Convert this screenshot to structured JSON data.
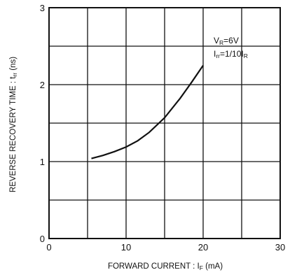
{
  "chart_data": {
    "type": "line",
    "xlabel": "FORWARD CURRENT : I",
    "xlabel_sub": "F",
    "xlabel_unit": " (mA)",
    "ylabel": "REVERSE RECOVERY TIME : t",
    "ylabel_sub": "rr",
    "ylabel_unit": " (ns)",
    "xlim": [
      0,
      30
    ],
    "ylim": [
      0,
      3
    ],
    "x_ticks": [
      "0",
      "10",
      "20",
      "30"
    ],
    "y_ticks": [
      "0",
      "1",
      "2",
      "3"
    ],
    "grid": true,
    "series": [
      {
        "x": [
          5.5,
          7,
          8.5,
          10,
          11.5,
          13,
          15,
          17,
          18.5,
          20
        ],
        "y": [
          1.04,
          1.08,
          1.13,
          1.19,
          1.27,
          1.38,
          1.57,
          1.82,
          2.03,
          2.25
        ]
      }
    ],
    "annotations": [
      {
        "main": "V",
        "sub": "R",
        "rest": "=6V"
      },
      {
        "main": "I",
        "sub": "rr",
        "rest": "=1/10I",
        "sub2": "R"
      }
    ]
  }
}
